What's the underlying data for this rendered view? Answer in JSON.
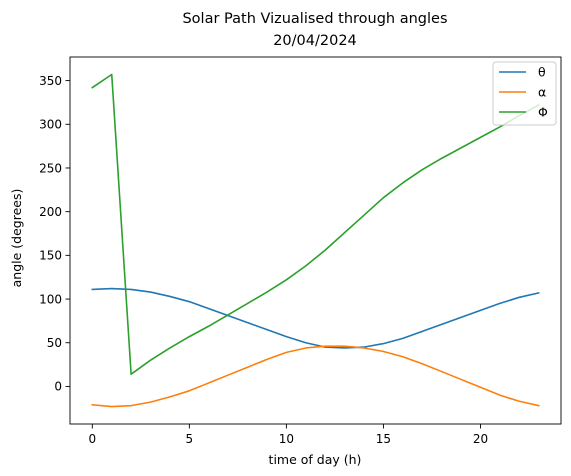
{
  "chart_data": {
    "type": "line",
    "title": "Solar Path Vizualised through angles",
    "subtitle": "20/04/2024",
    "xlabel": "time of day (h)",
    "ylabel": "angle (degrees)",
    "xlim": [
      -1.15,
      24.15
    ],
    "ylim": [
      -43,
      377
    ],
    "x_ticks": [
      0,
      5,
      10,
      15,
      20
    ],
    "y_ticks": [
      0,
      50,
      100,
      150,
      200,
      250,
      300,
      350
    ],
    "grid": false,
    "legend_position": "top-right",
    "x": [
      0,
      1,
      2,
      3,
      4,
      5,
      6,
      7,
      8,
      9,
      10,
      11,
      12,
      13,
      14,
      15,
      16,
      17,
      18,
      19,
      20,
      21,
      22,
      23
    ],
    "series": [
      {
        "name": "θ",
        "color": "#1f77b4",
        "values": [
          111,
          112,
          111,
          108,
          103,
          97,
          89,
          81,
          73,
          65,
          57,
          50,
          45,
          44,
          45,
          49,
          55,
          63,
          71,
          79,
          87,
          95,
          102,
          107
        ]
      },
      {
        "name": "α",
        "color": "#ff7f0e",
        "values": [
          -21,
          -23,
          -22,
          -18,
          -12,
          -5,
          4,
          13,
          22,
          31,
          39,
          44,
          46,
          46,
          44,
          40,
          34,
          26,
          17,
          8,
          -1,
          -10,
          -17,
          -22
        ]
      },
      {
        "name": "Φ",
        "color": "#2ca02c",
        "values": [
          342,
          357,
          14,
          30,
          44,
          57,
          69,
          82,
          95,
          108,
          122,
          138,
          156,
          176,
          196,
          216,
          233,
          248,
          261,
          273,
          285,
          297,
          310,
          322
        ]
      }
    ]
  }
}
